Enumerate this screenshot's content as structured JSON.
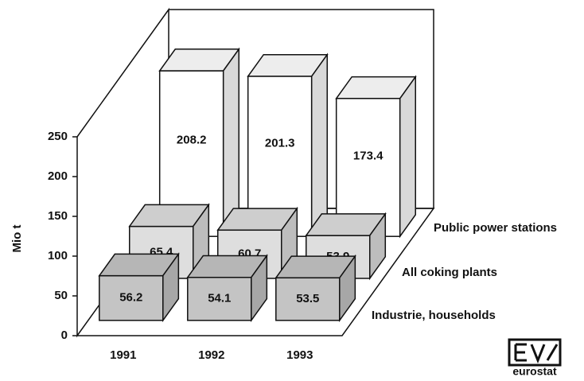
{
  "chart_data": {
    "type": "bar3d",
    "ylabel": "Mio t",
    "categories": [
      "1991",
      "1992",
      "1993"
    ],
    "series": [
      {
        "name": "Industrie, households",
        "color": "#c4c4c4",
        "values": [
          56.2,
          54.1,
          53.5
        ]
      },
      {
        "name": "All coking plants",
        "color": "#dedede",
        "values": [
          65.4,
          60.7,
          53.9
        ]
      },
      {
        "name": "Public power stations",
        "color": "#ffffff",
        "values": [
          208.2,
          201.3,
          173.4
        ]
      }
    ],
    "ylim": [
      0,
      250
    ],
    "yticks": [
      0,
      50,
      100,
      150,
      200,
      250
    ],
    "logo": "eurostat"
  }
}
